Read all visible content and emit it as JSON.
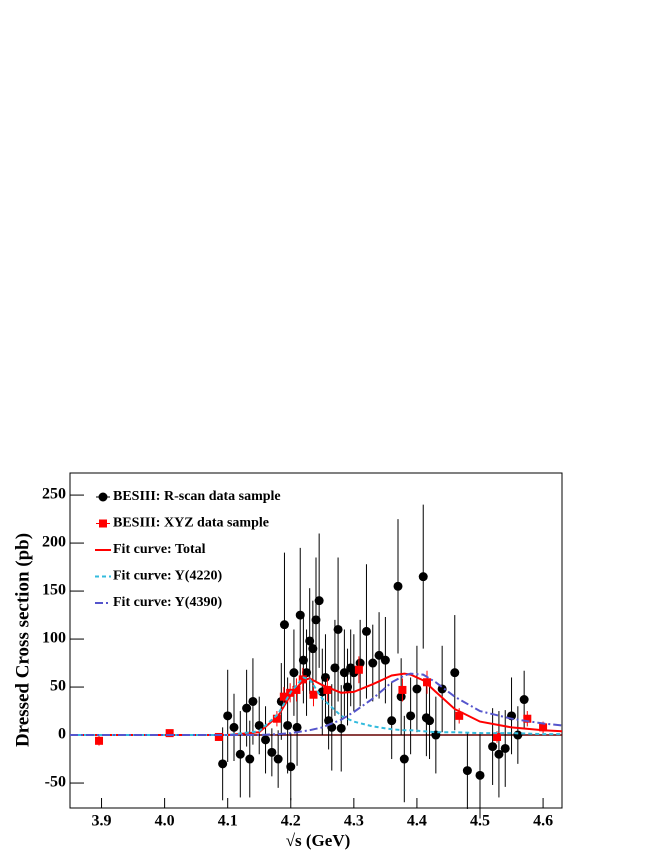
{
  "chart_data": {
    "type": "scatter",
    "ylabel": "Dressed Cross section (pb)",
    "xlabel": "√s (GeV)",
    "xlim": [
      3.85,
      4.63
    ],
    "ylim": [
      -76,
      273
    ],
    "xticks": [
      3.9,
      {
        "value": 4,
        "label": "4.0"
      },
      4.1,
      4.2,
      4.3,
      4.4,
      4.5,
      4.6
    ],
    "yticks": [
      -50,
      0,
      50,
      100,
      150,
      200,
      250
    ],
    "legend": "top-left",
    "series": [
      {
        "name": "BESIII: R-scan data sample",
        "color": "#000000",
        "marker": "circle",
        "x": [
          4.092,
          4.1,
          4.11,
          4.12,
          4.13,
          4.135,
          4.14,
          4.15,
          4.16,
          4.17,
          4.18,
          4.185,
          4.19,
          4.195,
          4.2,
          4.205,
          4.21,
          4.215,
          4.22,
          4.225,
          4.23,
          4.235,
          4.24,
          4.245,
          4.25,
          4.255,
          4.26,
          4.265,
          4.27,
          4.275,
          4.28,
          4.285,
          4.29,
          4.295,
          4.3,
          4.31,
          4.32,
          4.33,
          4.34,
          4.35,
          4.36,
          4.37,
          4.375,
          4.38,
          4.39,
          4.4,
          4.41,
          4.415,
          4.42,
          4.43,
          4.44,
          4.46,
          4.48,
          4.5,
          4.52,
          4.53,
          4.54,
          4.55,
          4.56,
          4.57
        ],
        "values": [
          -30,
          20,
          8,
          -20,
          28,
          -25,
          35,
          10,
          -5,
          -18,
          -25,
          35,
          115,
          10,
          -33,
          65,
          8,
          125,
          78,
          65,
          98,
          90,
          120,
          140,
          45,
          60,
          15,
          8,
          70,
          110,
          7,
          65,
          50,
          70,
          65,
          75,
          108,
          75,
          83,
          78,
          15,
          155,
          40,
          -25,
          20,
          48,
          165,
          18,
          15,
          0,
          48,
          65,
          -37,
          -42,
          -12,
          -20,
          -14,
          20,
          0,
          37
        ],
        "errors": [
          38,
          48,
          35,
          45,
          40,
          40,
          45,
          30,
          35,
          25,
          30,
          40,
          75,
          50,
          35,
          45,
          40,
          70,
          45,
          45,
          55,
          50,
          65,
          70,
          45,
          45,
          30,
          45,
          50,
          75,
          45,
          45,
          40,
          40,
          40,
          45,
          70,
          40,
          45,
          45,
          40,
          70,
          40,
          45,
          40,
          45,
          75,
          40,
          40,
          40,
          45,
          60,
          40,
          45,
          40,
          45,
          40,
          40,
          30,
          30
        ]
      },
      {
        "name": "BESIII: XYZ data sample",
        "color": "#ff0000",
        "marker": "square",
        "x": [
          3.896,
          4.008,
          4.086,
          4.178,
          4.189,
          4.199,
          4.209,
          4.219,
          4.236,
          4.258,
          4.308,
          4.377,
          4.416,
          4.467,
          4.527,
          4.575,
          4.6
        ],
        "values": [
          -6,
          2,
          -2,
          17,
          40,
          44,
          47,
          58,
          42,
          47,
          68,
          47,
          55,
          20,
          -2,
          17,
          8
        ],
        "errors": [
          5,
          2,
          4,
          8,
          10,
          10,
          12,
          12,
          12,
          12,
          14,
          12,
          12,
          8,
          6,
          8,
          6
        ]
      },
      {
        "name": "Fit curve: Total",
        "color": "#ff0000",
        "dash": "none",
        "x": [
          3.85,
          4.0,
          4.1,
          4.15,
          4.18,
          4.2,
          4.22,
          4.23,
          4.25,
          4.28,
          4.3,
          4.33,
          4.36,
          4.38,
          4.39,
          4.41,
          4.43,
          4.46,
          4.5,
          4.55,
          4.6,
          4.63
        ],
        "values": [
          0,
          0,
          0,
          3,
          20,
          42,
          57,
          59,
          52,
          44,
          45,
          53,
          62,
          64,
          63,
          57,
          45,
          27,
          14,
          8,
          5,
          4
        ]
      },
      {
        "name": "Fit curve: Y(4220)",
        "color": "#33bbdd",
        "dash": "4 3",
        "x": [
          3.85,
          4.0,
          4.1,
          4.15,
          4.18,
          4.2,
          4.22,
          4.23,
          4.25,
          4.28,
          4.3,
          4.33,
          4.36,
          4.38,
          4.39,
          4.41,
          4.43,
          4.46,
          4.5,
          4.55,
          4.6,
          4.63
        ],
        "values": [
          0,
          0,
          0,
          4,
          22,
          45,
          60,
          58,
          38,
          20,
          14,
          9,
          6,
          5,
          5,
          4,
          3,
          3,
          2,
          2,
          1,
          1
        ]
      },
      {
        "name": "Fit curve: Y(4390)",
        "color": "#5555cc",
        "dash": "8 3 2 3",
        "x": [
          3.85,
          4.0,
          4.1,
          4.15,
          4.18,
          4.2,
          4.22,
          4.23,
          4.25,
          4.28,
          4.3,
          4.33,
          4.36,
          4.38,
          4.39,
          4.41,
          4.43,
          4.46,
          4.5,
          4.55,
          4.6,
          4.63
        ],
        "values": [
          0,
          0,
          0,
          0,
          1,
          2,
          4,
          5,
          8,
          16,
          24,
          38,
          55,
          62,
          64,
          63,
          55,
          40,
          25,
          17,
          12,
          10
        ]
      }
    ]
  }
}
